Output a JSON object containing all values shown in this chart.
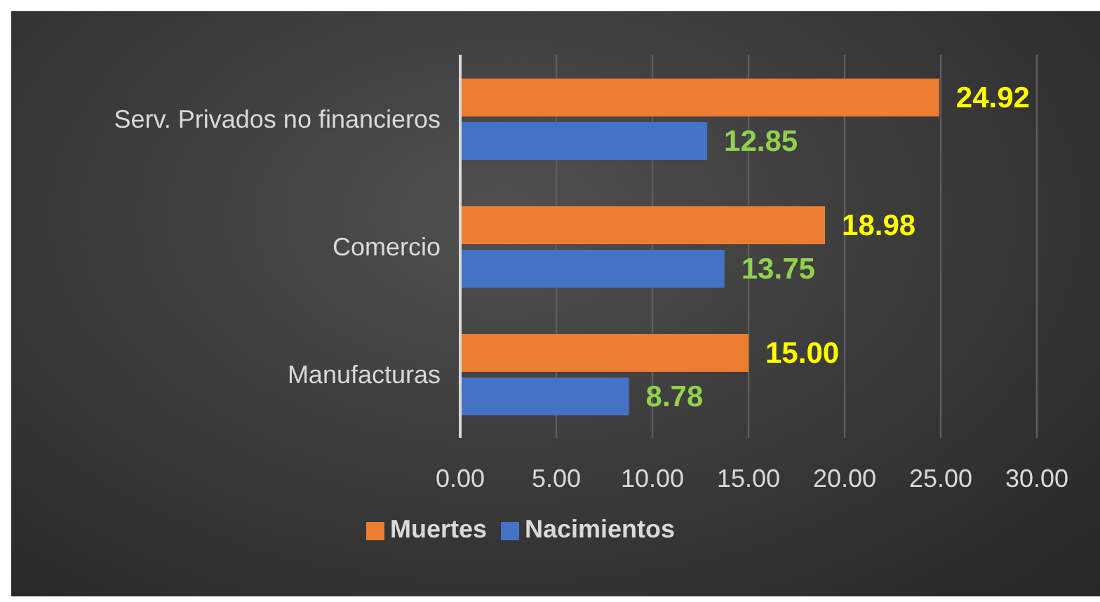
{
  "chart_data": {
    "type": "bar",
    "orientation": "horizontal",
    "categories": [
      "Serv. Privados no financieros",
      "Comercio",
      "Manufacturas"
    ],
    "series": [
      {
        "name": "Muertes",
        "color": "#ed7d31",
        "values": [
          24.92,
          18.98,
          15.0
        ],
        "value_labels": [
          "24.92",
          "18.98",
          "15.00"
        ]
      },
      {
        "name": "Nacimientos",
        "color": "#4472c4",
        "values": [
          12.85,
          13.75,
          8.78
        ],
        "value_labels": [
          "12.85",
          "13.75",
          "8.78"
        ]
      }
    ],
    "xlim": [
      0,
      30
    ],
    "xticks": [
      {
        "value": 0,
        "label": "0.00"
      },
      {
        "value": 5,
        "label": "5.00"
      },
      {
        "value": 10,
        "label": "10.00"
      },
      {
        "value": 15,
        "label": "15.00"
      },
      {
        "value": 20,
        "label": "20.00"
      },
      {
        "value": 25,
        "label": "25.00"
      },
      {
        "value": 30,
        "label": "30.00"
      }
    ],
    "grid": "x",
    "legend": "bottom"
  }
}
